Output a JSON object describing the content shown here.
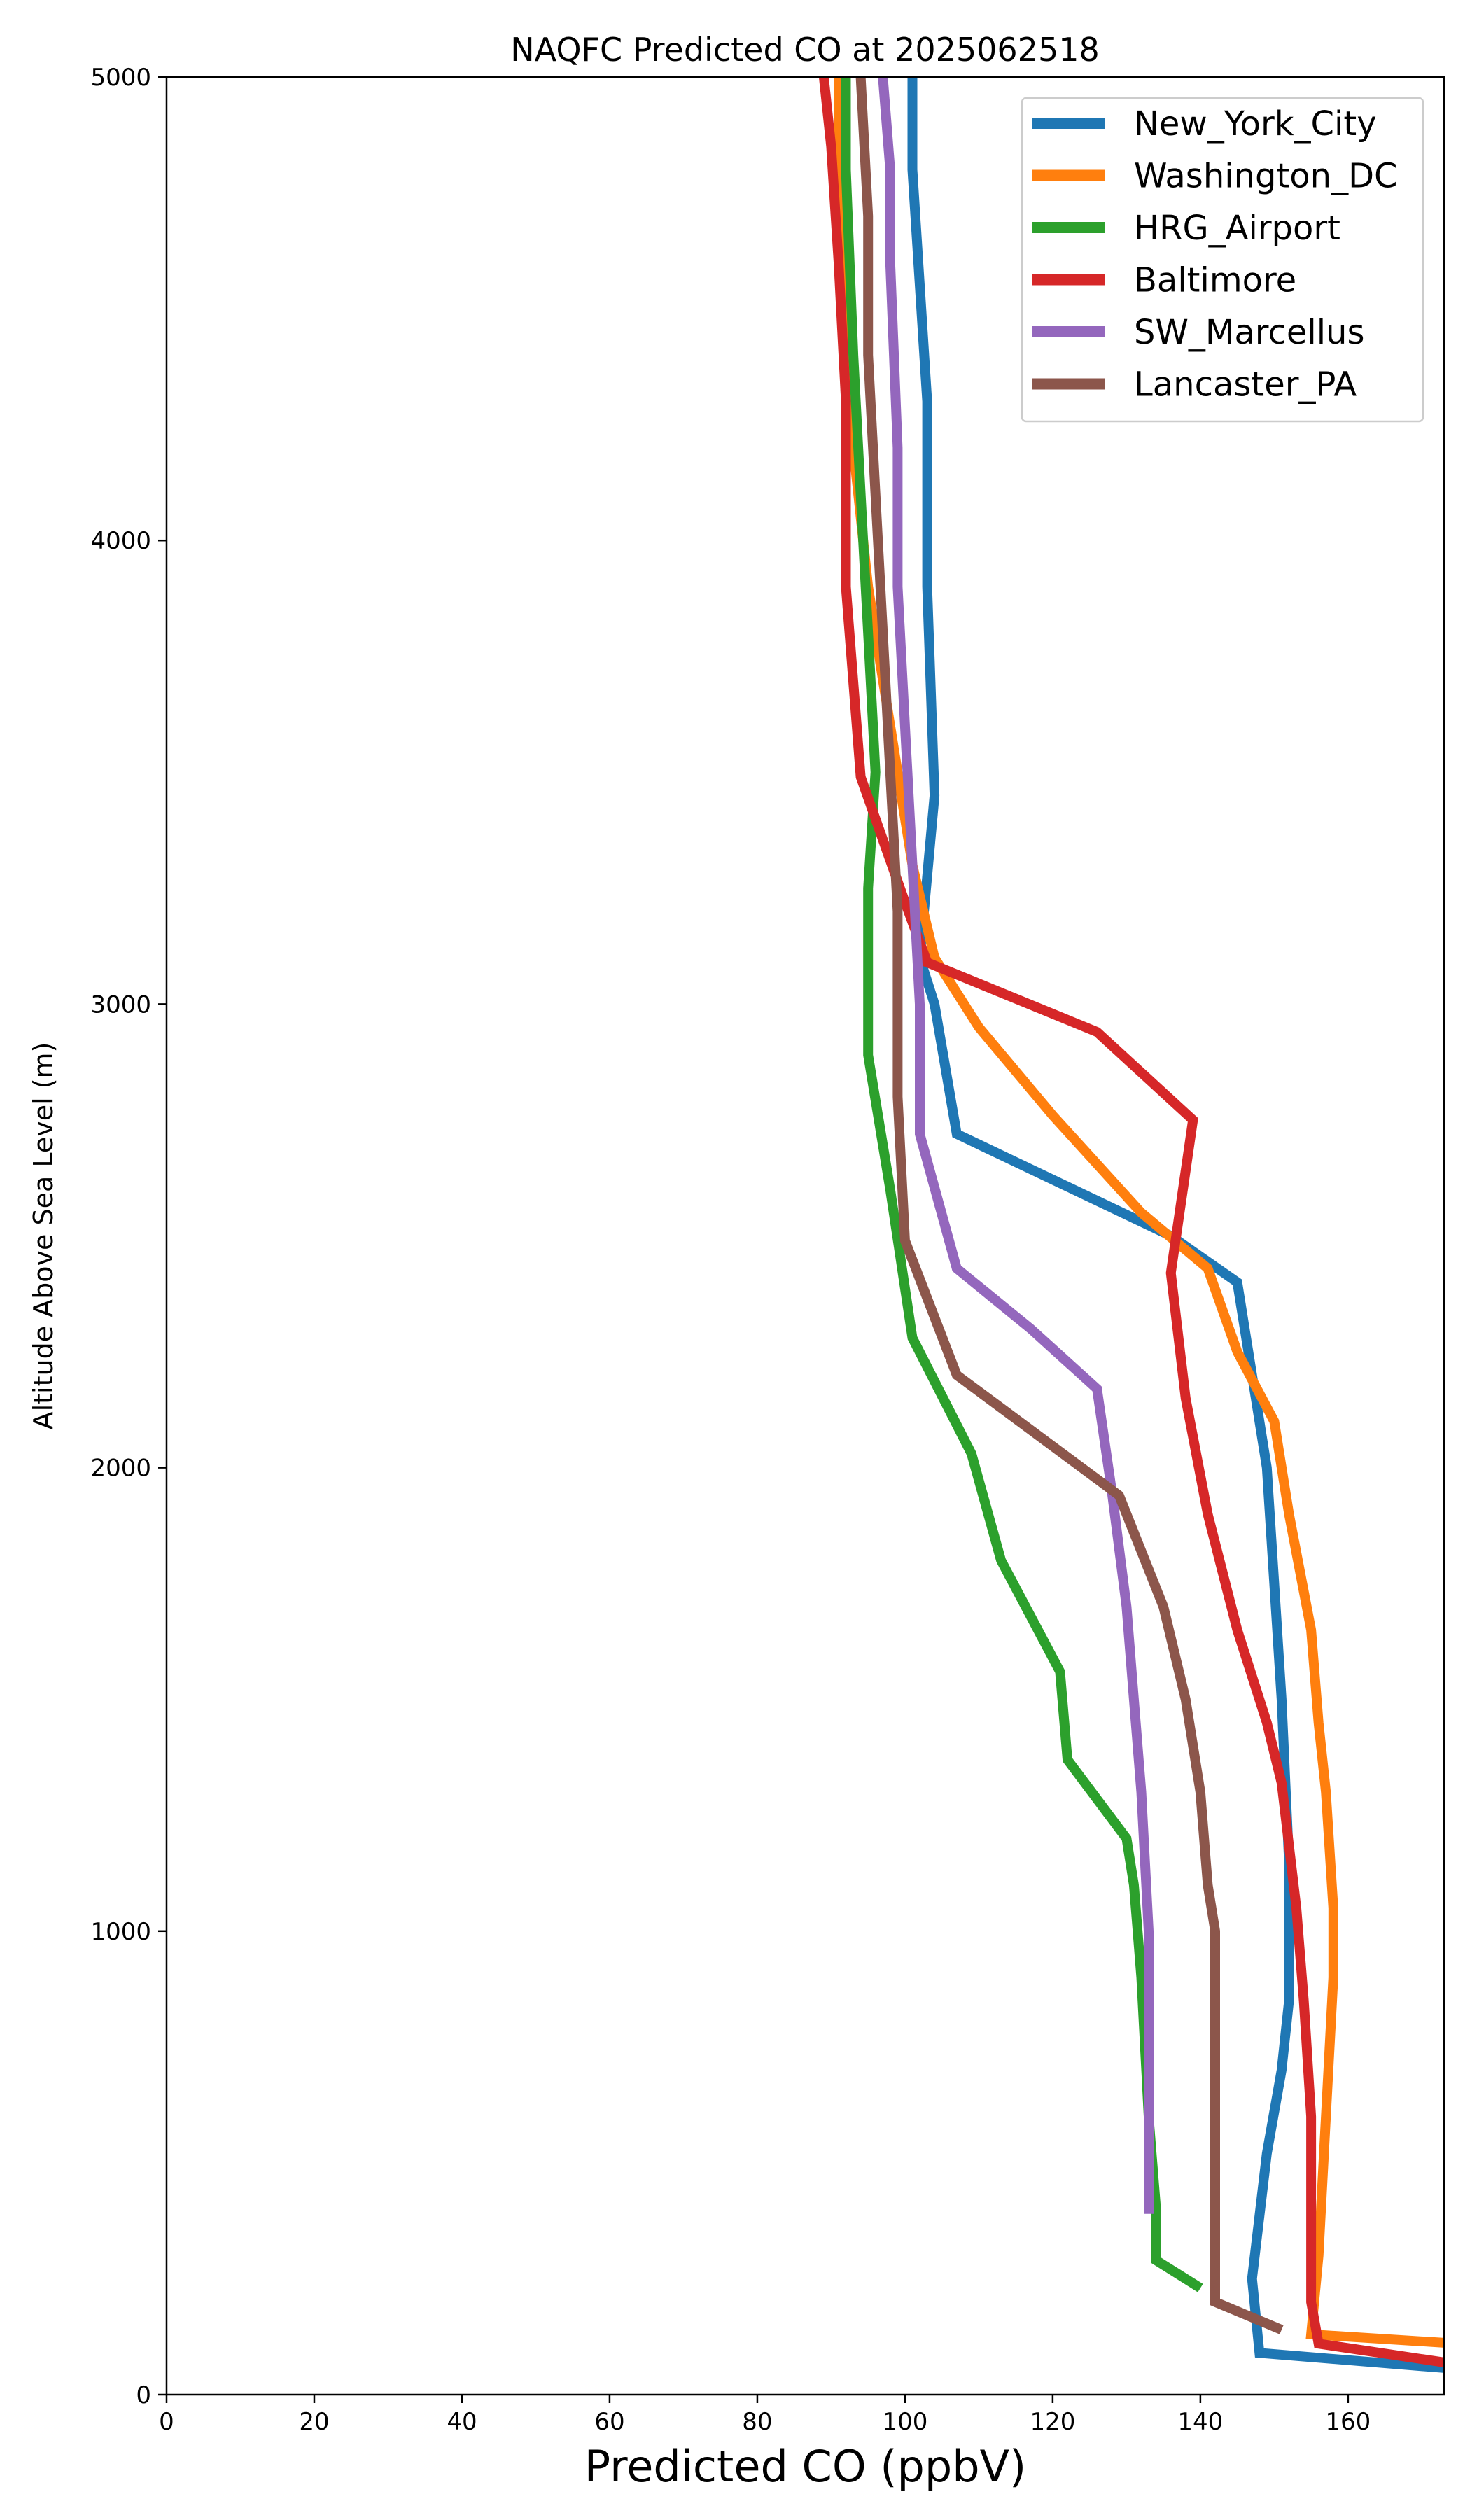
{
  "chart_data": {
    "type": "line",
    "title": "NAQFC Predicted CO at 2025062518",
    "xlabel": "Predicted CO (ppbV)",
    "ylabel": "Altitude Above Sea Level (m)",
    "xlim": [
      0,
      173
    ],
    "ylim": [
      0,
      5000
    ],
    "xticks": [
      0,
      20,
      40,
      60,
      80,
      100,
      120,
      140,
      160
    ],
    "yticks": [
      0,
      1000,
      2000,
      3000,
      4000,
      5000
    ],
    "grid": false,
    "legend_position": "top-right",
    "series": [
      {
        "name": "New_York_City",
        "color": "#1f77b4",
        "points": [
          [
            175,
            55
          ],
          [
            148,
            90
          ],
          [
            147,
            250
          ],
          [
            149,
            520
          ],
          [
            151,
            700
          ],
          [
            152,
            850
          ],
          [
            152,
            1150
          ],
          [
            151,
            1500
          ],
          [
            150,
            1750
          ],
          [
            149,
            2000
          ],
          [
            147,
            2200
          ],
          [
            145,
            2400
          ],
          [
            136,
            2500
          ],
          [
            107,
            2720
          ],
          [
            104,
            3000
          ],
          [
            102,
            3100
          ],
          [
            104,
            3450
          ],
          [
            103,
            3900
          ],
          [
            103,
            4300
          ],
          [
            101,
            4800
          ],
          [
            101,
            5000
          ]
        ]
      },
      {
        "name": "Washington_DC",
        "color": "#ff7f0e",
        "points": [
          [
            175,
            110
          ],
          [
            155,
            130
          ],
          [
            156,
            300
          ],
          [
            157,
            600
          ],
          [
            158,
            900
          ],
          [
            158,
            1050
          ],
          [
            157,
            1300
          ],
          [
            156,
            1450
          ],
          [
            155,
            1650
          ],
          [
            152,
            1900
          ],
          [
            150,
            2100
          ],
          [
            145,
            2250
          ],
          [
            141,
            2430
          ],
          [
            132,
            2550
          ],
          [
            120,
            2760
          ],
          [
            110,
            2950
          ],
          [
            104,
            3100
          ],
          [
            101,
            3300
          ],
          [
            99,
            3500
          ],
          [
            97,
            3700
          ],
          [
            95,
            3900
          ],
          [
            93,
            4200
          ],
          [
            92,
            4500
          ],
          [
            91,
            4800
          ],
          [
            91,
            5000
          ]
        ]
      },
      {
        "name": "HRG_Airport",
        "color": "#2ca02c",
        "points": [
          [
            140,
            230
          ],
          [
            134,
            290
          ],
          [
            134,
            400
          ],
          [
            133,
            600
          ],
          [
            132,
            900
          ],
          [
            131,
            1100
          ],
          [
            130,
            1200
          ],
          [
            122,
            1370
          ],
          [
            121,
            1560
          ],
          [
            113,
            1800
          ],
          [
            109,
            2030
          ],
          [
            101,
            2280
          ],
          [
            98,
            2600
          ],
          [
            95,
            2890
          ],
          [
            95,
            3250
          ],
          [
            96,
            3500
          ],
          [
            95,
            3800
          ],
          [
            94,
            4100
          ],
          [
            93,
            4400
          ],
          [
            92,
            4800
          ],
          [
            92,
            5000
          ]
        ]
      },
      {
        "name": "Baltimore",
        "color": "#d62728",
        "points": [
          [
            175,
            65
          ],
          [
            156,
            110
          ],
          [
            155,
            200
          ],
          [
            155,
            600
          ],
          [
            154,
            850
          ],
          [
            153,
            1050
          ],
          [
            151,
            1320
          ],
          [
            149,
            1450
          ],
          [
            145,
            1650
          ],
          [
            141,
            1900
          ],
          [
            138,
            2150
          ],
          [
            136,
            2420
          ],
          [
            139,
            2750
          ],
          [
            126,
            2940
          ],
          [
            103,
            3090
          ],
          [
            100,
            3220
          ],
          [
            94,
            3490
          ],
          [
            92,
            3900
          ],
          [
            92,
            4300
          ],
          [
            91,
            4600
          ],
          [
            90,
            4850
          ],
          [
            89,
            5000
          ]
        ]
      },
      {
        "name": "SW_Marcellus",
        "color": "#9467bd",
        "points": [
          [
            133,
            390
          ],
          [
            133,
            500
          ],
          [
            133,
            800
          ],
          [
            133,
            1000
          ],
          [
            132,
            1300
          ],
          [
            131,
            1500
          ],
          [
            130,
            1700
          ],
          [
            128,
            1950
          ],
          [
            126,
            2170
          ],
          [
            117,
            2300
          ],
          [
            107,
            2430
          ],
          [
            102,
            2720
          ],
          [
            102,
            3000
          ],
          [
            101,
            3300
          ],
          [
            100,
            3600
          ],
          [
            99,
            3900
          ],
          [
            99,
            4200
          ],
          [
            98,
            4600
          ],
          [
            98,
            4800
          ],
          [
            97,
            5000
          ]
        ]
      },
      {
        "name": "Lancaster_PA",
        "color": "#8c564b",
        "points": [
          [
            151,
            140
          ],
          [
            142,
            200
          ],
          [
            142,
            500
          ],
          [
            142,
            800
          ],
          [
            142,
            1000
          ],
          [
            141,
            1100
          ],
          [
            140,
            1300
          ],
          [
            138,
            1500
          ],
          [
            135,
            1700
          ],
          [
            129,
            1940
          ],
          [
            107,
            2200
          ],
          [
            100,
            2490
          ],
          [
            99,
            2800
          ],
          [
            99,
            3200
          ],
          [
            98,
            3500
          ],
          [
            97,
            3800
          ],
          [
            96,
            4100
          ],
          [
            95,
            4400
          ],
          [
            95,
            4700
          ],
          [
            94,
            5000
          ]
        ]
      }
    ]
  }
}
